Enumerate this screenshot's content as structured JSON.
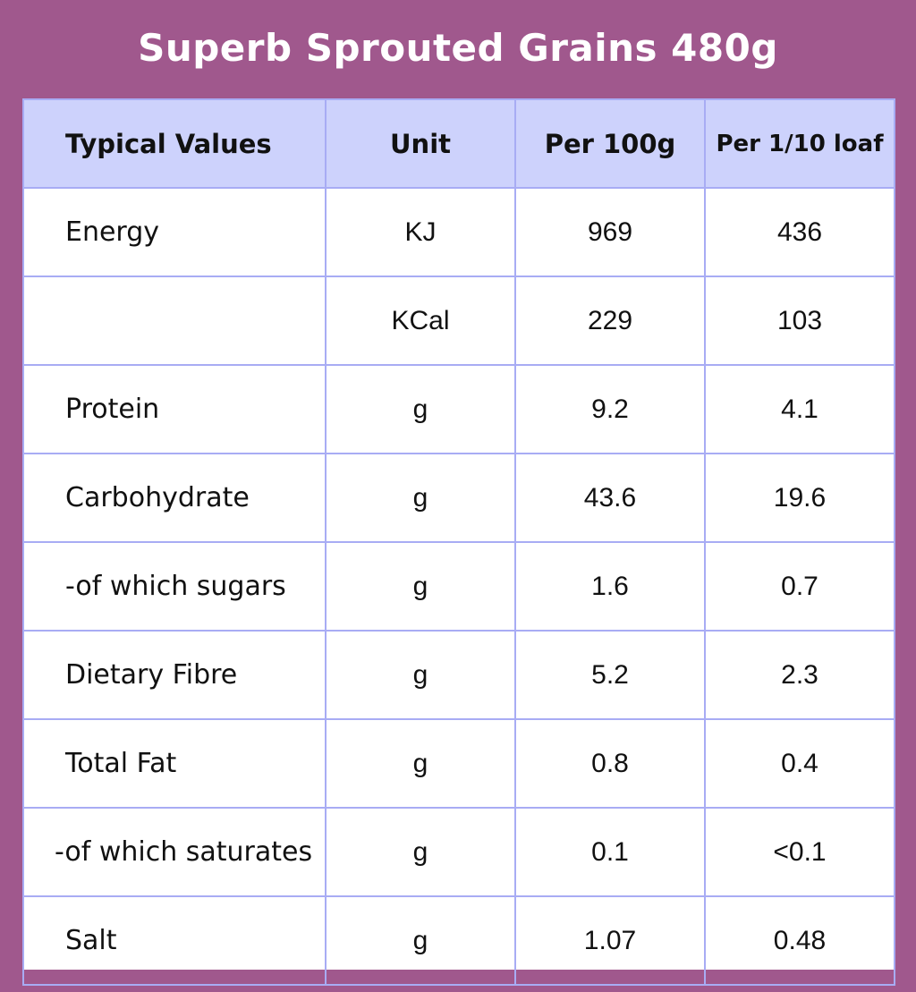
{
  "title": "Superb Sprouted Grains 480g",
  "colors": {
    "background": "#a0588d",
    "header_fill": "#cdd2fc",
    "grid": "#a8acf4",
    "title_text": "#ffffff"
  },
  "table": {
    "headers": [
      "Typical Values",
      "Unit",
      "Per 100g",
      "Per 1/10 loaf"
    ],
    "rows": [
      {
        "name": "Energy",
        "unit": "KJ",
        "per100": "969",
        "perTenth": "436"
      },
      {
        "name": "",
        "unit": "KCal",
        "per100": "229",
        "perTenth": "103"
      },
      {
        "name": "Protein",
        "unit": "g",
        "per100": "9.2",
        "perTenth": "4.1"
      },
      {
        "name": "Carbohydrate",
        "unit": "g",
        "per100": "43.6",
        "perTenth": "19.6"
      },
      {
        "name": " -of which sugars",
        "unit": "g",
        "per100": "1.6",
        "perTenth": "0.7"
      },
      {
        "name": "Dietary Fibre",
        "unit": "g",
        "per100": "5.2",
        "perTenth": "2.3"
      },
      {
        "name": "Total Fat",
        "unit": "g",
        "per100": "0.8",
        "perTenth": "0.4"
      },
      {
        "name": "-of which saturates",
        "unit": "g",
        "per100": "0.1",
        "perTenth": "<0.1"
      },
      {
        "name": "Salt",
        "unit": "g",
        "per100": "1.07",
        "perTenth": "0.48"
      }
    ]
  }
}
